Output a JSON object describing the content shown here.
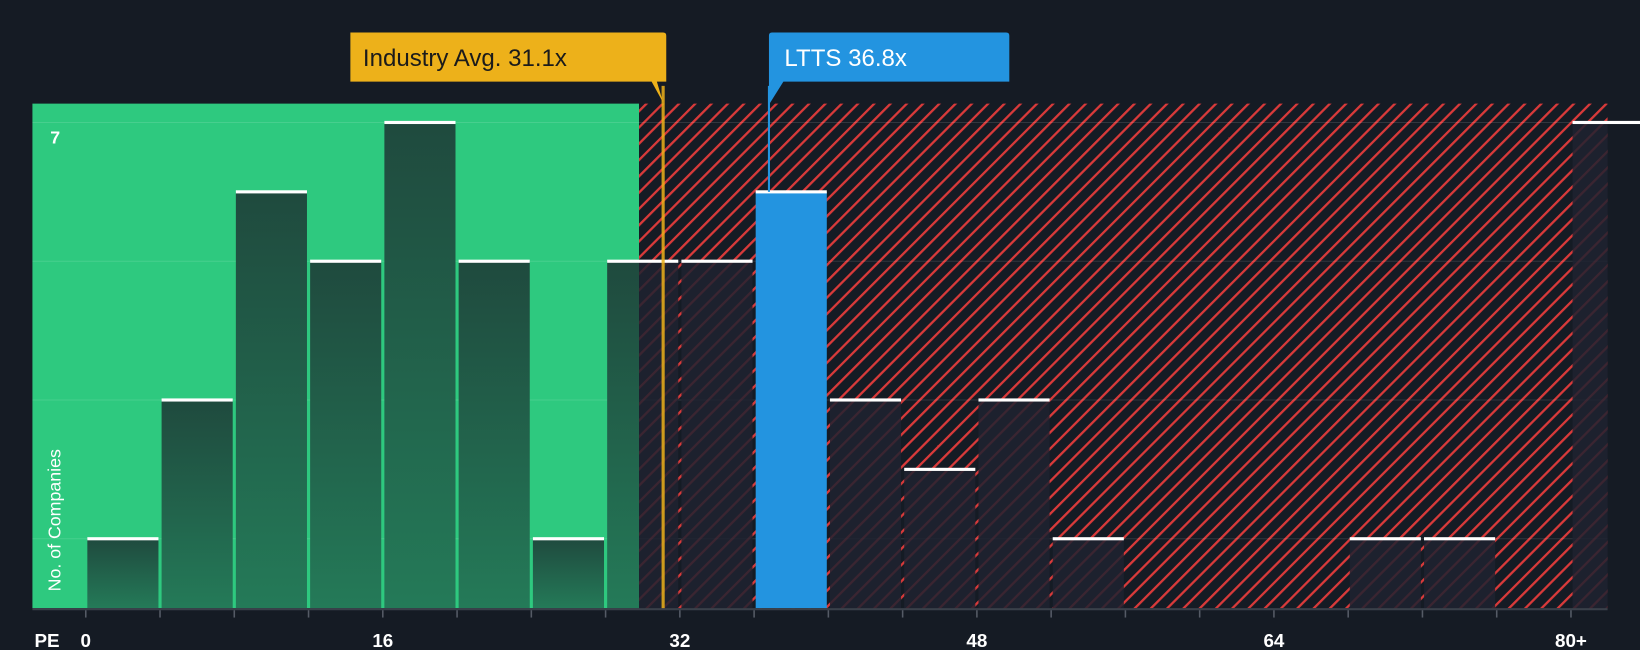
{
  "chart_data": {
    "type": "bar",
    "title": "",
    "xlabel": "PE",
    "ylabel": "No. of Companies",
    "bin_width": 4,
    "bins_start": [
      0,
      4,
      8,
      12,
      16,
      20,
      24,
      28,
      32,
      36,
      40,
      44,
      48,
      52,
      56,
      60,
      64,
      68,
      72,
      76,
      80
    ],
    "values": [
      1,
      3,
      6,
      5,
      7,
      5,
      1,
      5,
      5,
      6,
      3,
      2,
      3,
      1,
      0,
      0,
      0,
      1,
      1,
      0,
      7
    ],
    "highlight_bin_start": 36,
    "x_ticks": [
      "0",
      "16",
      "32",
      "48",
      "64",
      "80+"
    ],
    "x_tick_values": [
      0,
      16,
      32,
      48,
      64,
      80
    ],
    "y_tick_label": "7",
    "ylim": [
      0,
      7
    ],
    "xlim": [
      -2.9,
      82.2
    ],
    "fair_zone_upper": 29.8,
    "annotations": {
      "industry": {
        "label": "Industry Avg. 31.1x",
        "value": 31.1
      },
      "company": {
        "label": "LTTS 36.8x",
        "value": 36.8
      }
    },
    "colors": {
      "background": "#151b24",
      "green_zone": "#2ec97f",
      "green_bar_top": "#1f4a3e",
      "green_bar_bottom": "#247a58",
      "red_hatch": "#d93a3a",
      "red_bar": "#1e2230",
      "highlight": "#2394e0",
      "industry": "#edb11a"
    }
  }
}
